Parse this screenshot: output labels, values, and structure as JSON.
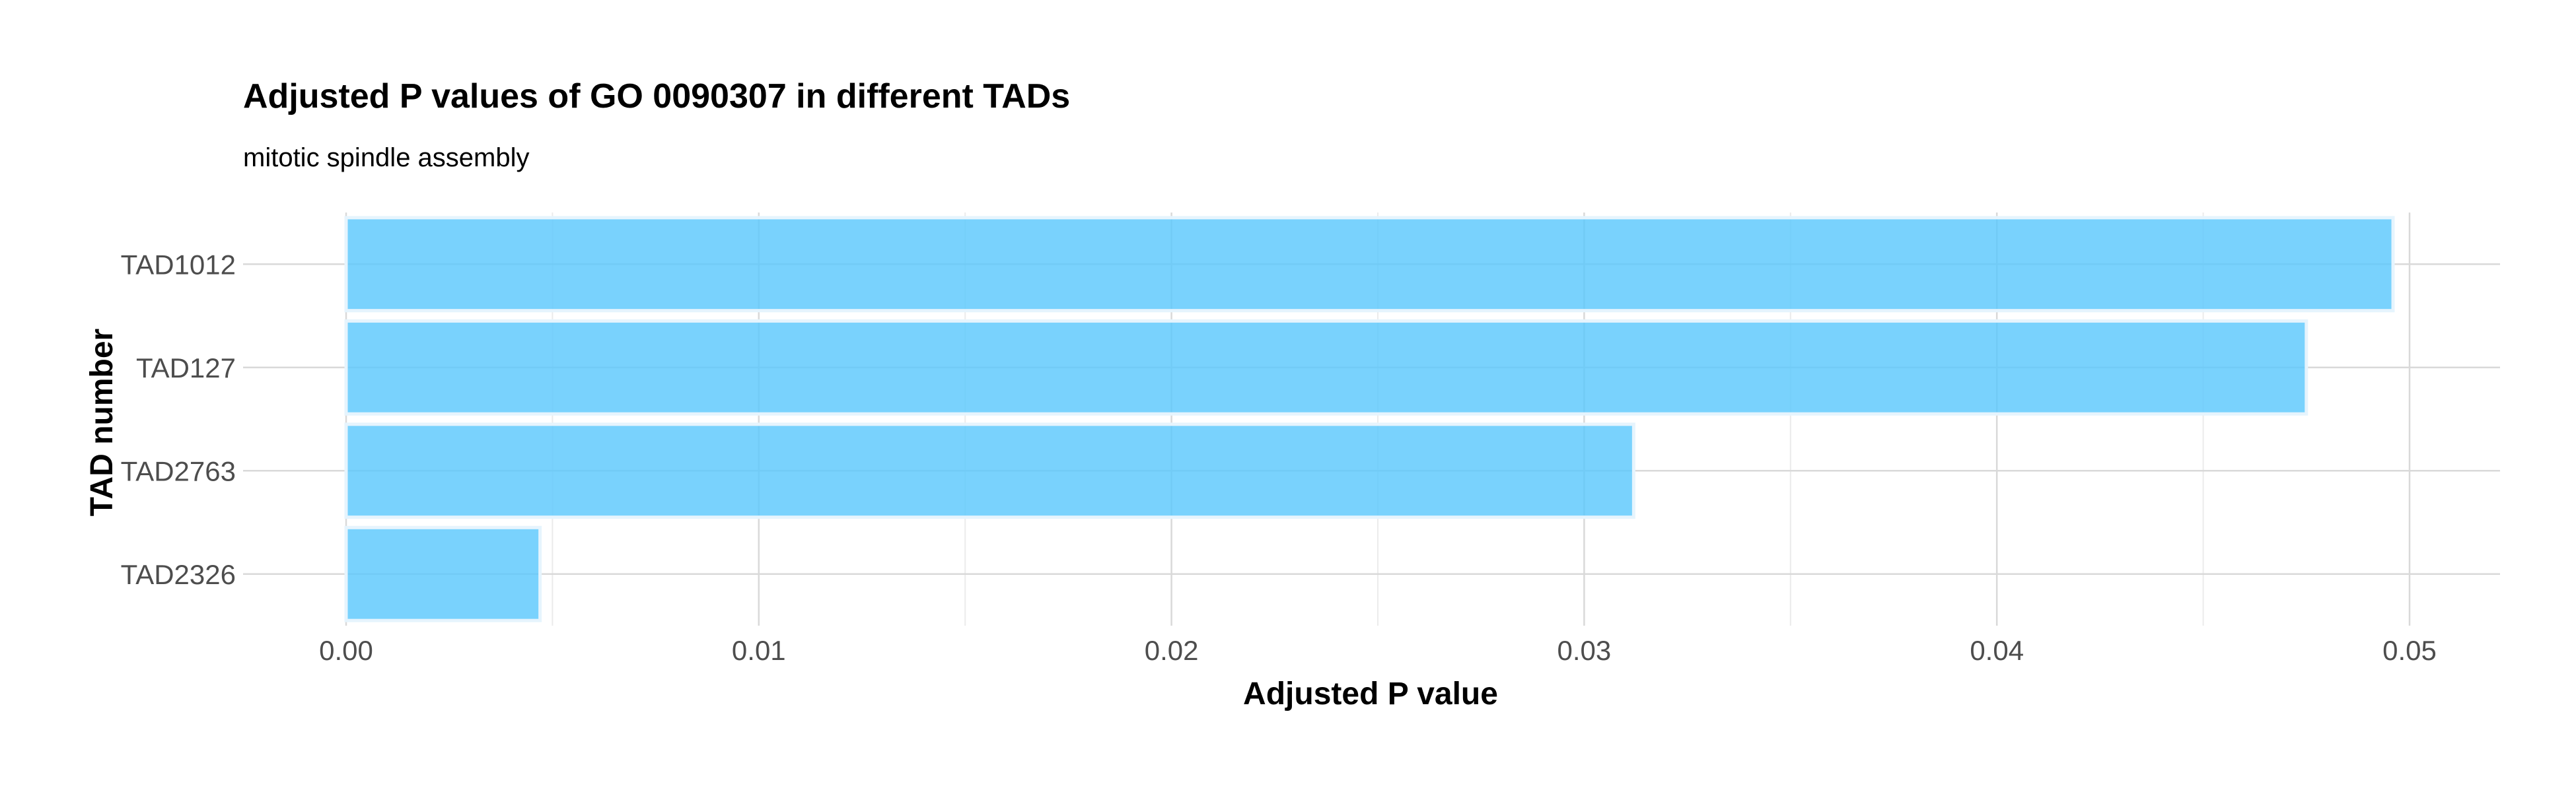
{
  "chart_data": {
    "type": "bar",
    "orientation": "horizontal",
    "title": "Adjusted P values of GO 0090307 in different TADs",
    "subtitle": "mitotic spindle assembly",
    "xlabel": "Adjusted P value",
    "ylabel": "TAD number",
    "categories": [
      "TAD1012",
      "TAD127",
      "TAD2763",
      "TAD2326"
    ],
    "values": [
      0.0496,
      0.0475,
      0.0312,
      0.0047
    ],
    "xlim": [
      -0.0025,
      0.052
    ],
    "xticks": [
      0.0,
      0.01,
      0.02,
      0.03,
      0.04,
      0.05
    ],
    "xtick_labels": [
      "0.00",
      "0.01",
      "0.02",
      "0.03",
      "0.04",
      "0.05"
    ],
    "grid": true,
    "bar_color": "#5BC8FC",
    "bar_edge_color": "#E6F4FD",
    "grid_color": "#D9D9D9"
  }
}
